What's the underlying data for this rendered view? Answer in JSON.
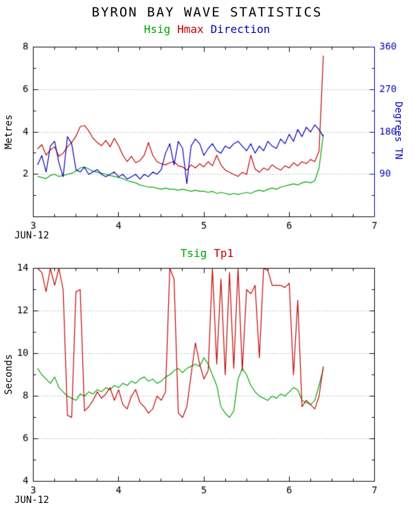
{
  "page": {
    "title": "BYRON BAY WAVE STATISTICS"
  },
  "chart_data": [
    {
      "type": "line",
      "legend": [
        "Hsig",
        "Hmax",
        "Direction"
      ],
      "xlabel": "JUN-12",
      "ylabel": "Metres",
      "y2label": "Degrees TN",
      "xlim": [
        3,
        7
      ],
      "xticks": [
        3,
        4,
        5,
        6,
        7
      ],
      "ylim": [
        0,
        8
      ],
      "yticks": [
        2,
        4,
        6,
        8
      ],
      "grid_y": [
        2,
        4,
        6
      ],
      "y2lim": [
        0,
        360
      ],
      "y2ticks": [
        90,
        180,
        270,
        360
      ],
      "x": [
        3.05,
        3.1,
        3.15,
        3.2,
        3.25,
        3.3,
        3.35,
        3.4,
        3.45,
        3.5,
        3.55,
        3.6,
        3.65,
        3.7,
        3.75,
        3.8,
        3.85,
        3.9,
        3.95,
        4.0,
        4.05,
        4.1,
        4.15,
        4.2,
        4.25,
        4.3,
        4.35,
        4.4,
        4.45,
        4.5,
        4.55,
        4.6,
        4.65,
        4.7,
        4.75,
        4.8,
        4.85,
        4.9,
        4.95,
        5.0,
        5.05,
        5.1,
        5.15,
        5.2,
        5.25,
        5.3,
        5.35,
        5.4,
        5.45,
        5.5,
        5.55,
        5.6,
        5.65,
        5.7,
        5.75,
        5.8,
        5.85,
        5.9,
        5.95,
        6.0,
        6.05,
        6.1,
        6.15,
        6.2,
        6.25,
        6.3,
        6.35,
        6.4
      ],
      "series": [
        {
          "name": "Hsig",
          "color": "#00a400",
          "axis": "left",
          "values": [
            1.9,
            1.85,
            1.8,
            1.95,
            2.0,
            1.9,
            1.95,
            2.0,
            2.05,
            2.15,
            2.3,
            2.35,
            2.25,
            2.15,
            2.1,
            2.05,
            2.0,
            1.95,
            1.9,
            1.85,
            1.8,
            1.7,
            1.65,
            1.6,
            1.5,
            1.45,
            1.4,
            1.4,
            1.35,
            1.3,
            1.35,
            1.3,
            1.3,
            1.25,
            1.3,
            1.25,
            1.2,
            1.25,
            1.2,
            1.2,
            1.15,
            1.2,
            1.1,
            1.15,
            1.1,
            1.05,
            1.1,
            1.05,
            1.1,
            1.15,
            1.1,
            1.2,
            1.25,
            1.2,
            1.3,
            1.35,
            1.3,
            1.4,
            1.45,
            1.5,
            1.55,
            1.5,
            1.6,
            1.65,
            1.6,
            1.7,
            2.3,
            3.9
          ]
        },
        {
          "name": "Hmax",
          "color": "#c00000",
          "axis": "left",
          "values": [
            3.2,
            3.4,
            2.9,
            3.15,
            3.3,
            2.85,
            3.0,
            3.3,
            3.5,
            3.8,
            4.25,
            4.3,
            4.05,
            3.7,
            3.5,
            3.35,
            3.6,
            3.3,
            3.7,
            3.35,
            2.9,
            2.6,
            2.85,
            2.55,
            2.65,
            2.9,
            3.5,
            2.9,
            2.6,
            2.5,
            2.45,
            2.55,
            2.6,
            2.4,
            2.35,
            2.2,
            2.45,
            2.3,
            2.5,
            2.35,
            2.6,
            2.4,
            2.9,
            2.45,
            2.2,
            2.1,
            2.0,
            1.9,
            2.1,
            2.0,
            2.9,
            2.25,
            2.1,
            2.3,
            2.2,
            2.45,
            2.3,
            2.2,
            2.4,
            2.3,
            2.55,
            2.4,
            2.6,
            2.5,
            2.7,
            2.6,
            3.1,
            7.6
          ]
        },
        {
          "name": "Direction",
          "color": "#0000b4",
          "axis": "right",
          "values": [
            110,
            130,
            95,
            150,
            160,
            115,
            85,
            170,
            155,
            100,
            95,
            105,
            90,
            95,
            100,
            90,
            85,
            90,
            95,
            85,
            90,
            80,
            85,
            90,
            80,
            90,
            85,
            95,
            90,
            100,
            135,
            155,
            110,
            160,
            145,
            70,
            150,
            165,
            155,
            130,
            145,
            155,
            140,
            135,
            150,
            145,
            155,
            160,
            150,
            140,
            155,
            135,
            150,
            140,
            160,
            150,
            145,
            165,
            155,
            175,
            160,
            185,
            170,
            190,
            180,
            195,
            185,
            170
          ]
        }
      ]
    },
    {
      "type": "line",
      "legend": [
        "Tsig",
        "Tp1"
      ],
      "xlabel": "JUN-12",
      "ylabel": "Seconds",
      "xlim": [
        3,
        7
      ],
      "xticks": [
        3,
        4,
        5,
        6,
        7
      ],
      "ylim": [
        4,
        14
      ],
      "yticks": [
        4,
        6,
        8,
        10,
        12,
        14
      ],
      "grid_y": [
        6,
        8,
        10,
        12
      ],
      "x": [
        3.05,
        3.1,
        3.15,
        3.2,
        3.25,
        3.3,
        3.35,
        3.4,
        3.45,
        3.5,
        3.55,
        3.6,
        3.65,
        3.7,
        3.75,
        3.8,
        3.85,
        3.9,
        3.95,
        4.0,
        4.05,
        4.1,
        4.15,
        4.2,
        4.25,
        4.3,
        4.35,
        4.4,
        4.45,
        4.5,
        4.55,
        4.6,
        4.65,
        4.7,
        4.75,
        4.8,
        4.85,
        4.9,
        4.95,
        5.0,
        5.05,
        5.1,
        5.15,
        5.2,
        5.25,
        5.3,
        5.35,
        5.4,
        5.45,
        5.5,
        5.55,
        5.6,
        5.65,
        5.7,
        5.75,
        5.8,
        5.85,
        5.9,
        5.95,
        6.0,
        6.05,
        6.1,
        6.15,
        6.2,
        6.25,
        6.3,
        6.35,
        6.4
      ],
      "series": [
        {
          "name": "Tsig",
          "color": "#00a400",
          "axis": "left",
          "values": [
            9.3,
            9.0,
            8.8,
            8.6,
            8.9,
            8.4,
            8.2,
            8.0,
            7.9,
            7.8,
            8.1,
            8.0,
            8.2,
            8.1,
            8.3,
            8.2,
            8.4,
            8.3,
            8.5,
            8.4,
            8.6,
            8.5,
            8.7,
            8.6,
            8.8,
            8.9,
            8.7,
            8.8,
            8.6,
            8.7,
            8.9,
            9.0,
            9.2,
            9.3,
            9.1,
            9.3,
            9.4,
            9.5,
            9.4,
            9.8,
            9.5,
            9.0,
            8.5,
            7.5,
            7.2,
            7.0,
            7.3,
            8.8,
            9.3,
            9.0,
            8.5,
            8.2,
            8.0,
            7.9,
            7.8,
            8.0,
            7.9,
            8.1,
            8.0,
            8.2,
            8.4,
            8.3,
            7.8,
            7.7,
            7.6,
            7.8,
            8.5,
            9.3
          ]
        },
        {
          "name": "Tp1",
          "color": "#c00000",
          "axis": "left",
          "values": [
            14,
            13.8,
            12.9,
            14,
            13.2,
            14,
            13.0,
            7.1,
            7.0,
            12.9,
            13.0,
            7.3,
            7.5,
            7.8,
            8.2,
            7.9,
            8.1,
            8.4,
            7.8,
            8.3,
            7.6,
            7.4,
            8.0,
            8.3,
            7.7,
            7.5,
            7.2,
            7.4,
            8.0,
            7.8,
            8.2,
            14,
            13.5,
            7.2,
            7.0,
            7.5,
            9.0,
            10.5,
            9.5,
            8.8,
            9.2,
            14,
            9.5,
            13.5,
            9.0,
            13.8,
            9.3,
            14,
            9.2,
            13.0,
            12.8,
            13.2,
            9.8,
            14,
            13.9,
            13.2,
            13.2,
            13.2,
            13.1,
            13.3,
            9.0,
            12.5,
            7.5,
            7.8,
            7.6,
            7.4,
            8.0,
            9.4
          ]
        }
      ]
    }
  ]
}
